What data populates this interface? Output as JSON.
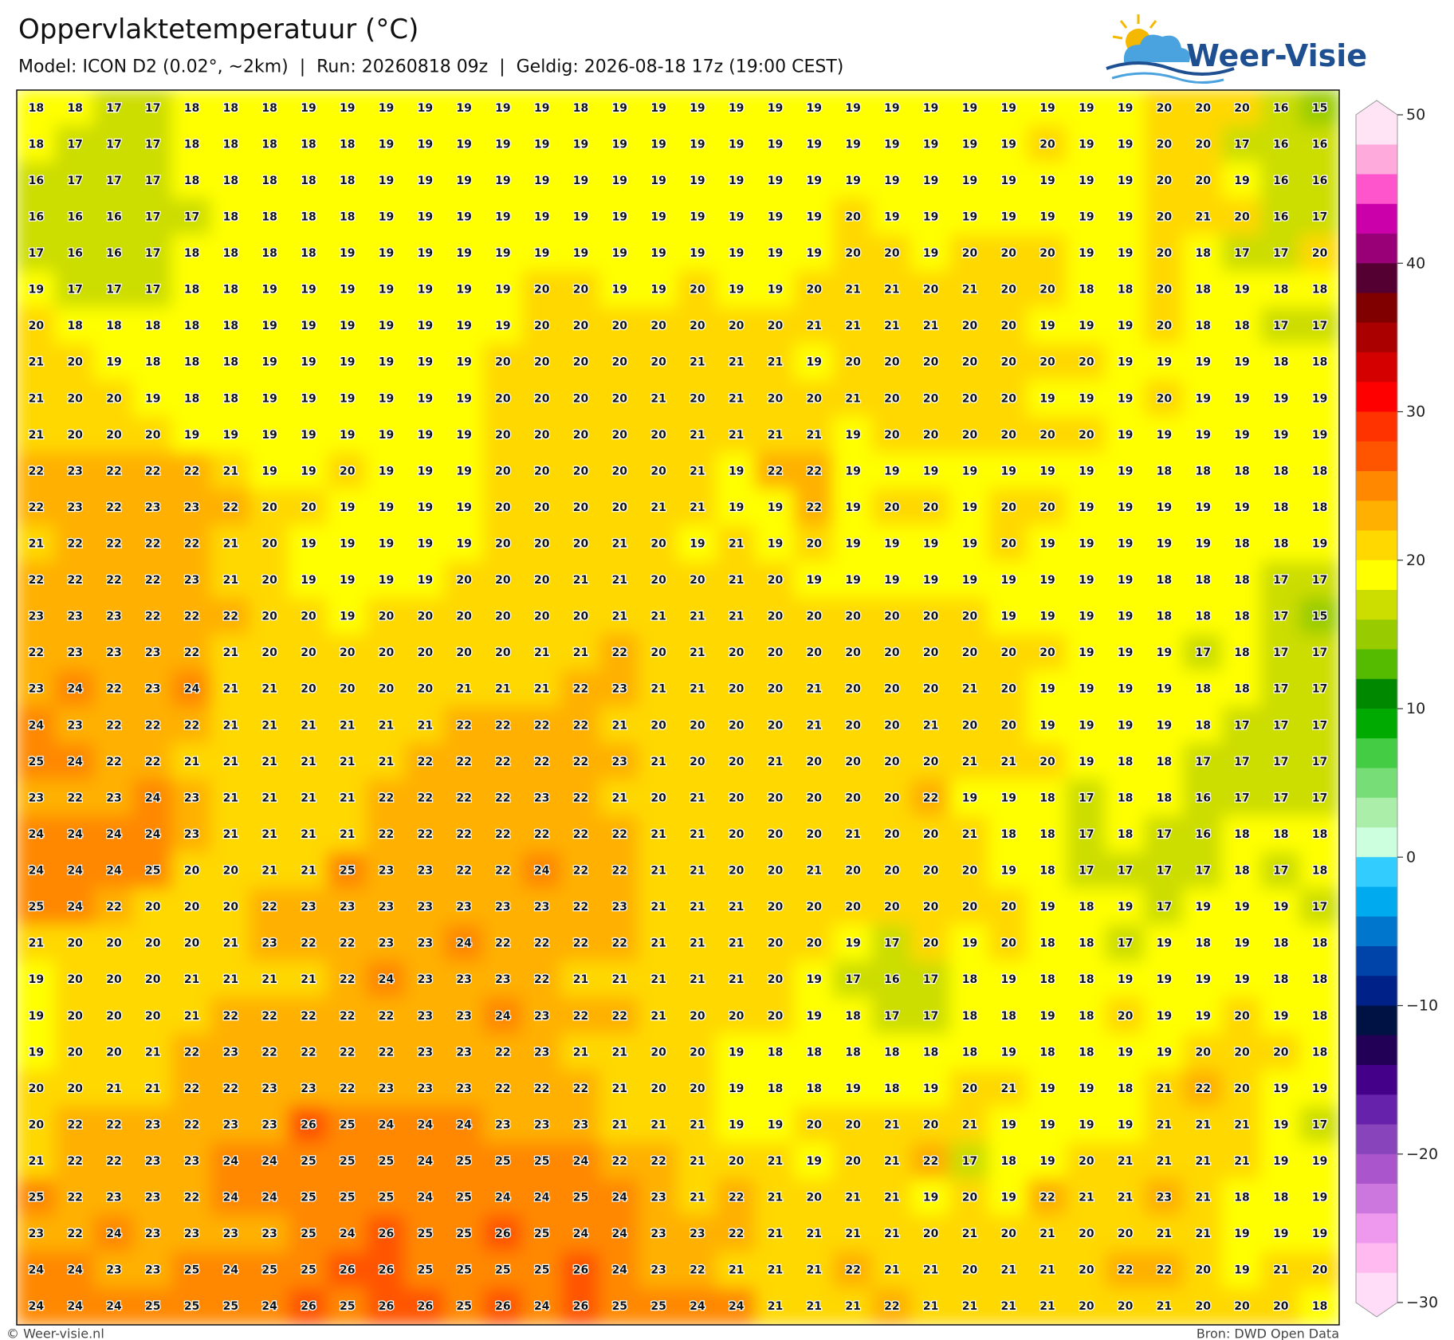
{
  "title": "Oppervlaktetemperatuur (°C)",
  "subtitle": "Model: ICON D2 (0.02°, ~2km)  |  Run: 20260818 09z  |  Geldig: 2026-08-18 17z (19:00 CEST)",
  "logo": "Weer-Visie",
  "footer": {
    "left": "© Weer-visie.nl",
    "right": "Bron: DWD Open Data"
  },
  "chart_data": {
    "type": "heatmap",
    "values": [
      [
        18,
        18,
        17,
        17,
        18,
        18,
        18,
        19,
        19,
        19,
        19,
        19,
        19,
        19,
        18,
        19,
        19,
        19,
        19,
        19,
        19,
        19,
        19,
        19,
        19,
        19,
        19,
        19,
        19,
        20,
        20,
        20,
        16,
        15
      ],
      [
        18,
        17,
        17,
        17,
        18,
        18,
        18,
        18,
        18,
        19,
        19,
        19,
        19,
        19,
        19,
        19,
        19,
        19,
        19,
        19,
        19,
        19,
        19,
        19,
        19,
        19,
        20,
        19,
        19,
        20,
        20,
        17,
        16,
        16
      ],
      [
        16,
        17,
        17,
        17,
        18,
        18,
        18,
        18,
        18,
        19,
        19,
        19,
        19,
        19,
        19,
        19,
        19,
        19,
        19,
        19,
        19,
        19,
        19,
        19,
        19,
        19,
        19,
        19,
        19,
        20,
        20,
        19,
        16,
        16
      ],
      [
        16,
        16,
        16,
        17,
        17,
        18,
        18,
        18,
        18,
        19,
        19,
        19,
        19,
        19,
        19,
        19,
        19,
        19,
        19,
        19,
        19,
        20,
        19,
        19,
        19,
        19,
        19,
        19,
        19,
        20,
        21,
        20,
        16,
        17
      ],
      [
        17,
        16,
        16,
        17,
        18,
        18,
        18,
        18,
        19,
        19,
        19,
        19,
        19,
        19,
        19,
        19,
        19,
        19,
        19,
        19,
        19,
        20,
        20,
        19,
        20,
        20,
        20,
        19,
        19,
        20,
        18,
        17,
        17,
        20
      ],
      [
        19,
        17,
        17,
        17,
        18,
        18,
        19,
        19,
        19,
        19,
        19,
        19,
        19,
        20,
        20,
        19,
        19,
        20,
        19,
        19,
        20,
        21,
        21,
        20,
        21,
        20,
        20,
        18,
        18,
        20,
        18,
        19,
        18,
        18
      ],
      [
        20,
        18,
        18,
        18,
        18,
        18,
        19,
        19,
        19,
        19,
        19,
        19,
        19,
        20,
        20,
        20,
        20,
        20,
        20,
        20,
        21,
        21,
        21,
        21,
        20,
        20,
        19,
        19,
        19,
        20,
        18,
        18,
        17,
        17
      ],
      [
        21,
        20,
        19,
        18,
        18,
        18,
        19,
        19,
        19,
        19,
        19,
        19,
        20,
        20,
        20,
        20,
        20,
        21,
        21,
        21,
        19,
        20,
        20,
        20,
        20,
        20,
        20,
        20,
        19,
        19,
        19,
        19,
        18,
        18
      ],
      [
        21,
        20,
        20,
        19,
        18,
        18,
        19,
        19,
        19,
        19,
        19,
        19,
        20,
        20,
        20,
        20,
        21,
        20,
        21,
        20,
        20,
        21,
        20,
        20,
        20,
        20,
        19,
        19,
        19,
        20,
        19,
        19,
        19,
        19
      ],
      [
        21,
        20,
        20,
        20,
        19,
        19,
        19,
        19,
        19,
        19,
        19,
        19,
        20,
        20,
        20,
        20,
        20,
        21,
        21,
        21,
        21,
        19,
        20,
        20,
        20,
        20,
        20,
        20,
        19,
        19,
        19,
        19,
        19,
        19
      ],
      [
        22,
        23,
        22,
        22,
        22,
        21,
        19,
        19,
        20,
        19,
        19,
        19,
        20,
        20,
        20,
        20,
        20,
        21,
        19,
        22,
        22,
        19,
        19,
        19,
        19,
        19,
        19,
        19,
        19,
        18,
        18,
        18,
        18,
        18
      ],
      [
        22,
        23,
        22,
        23,
        23,
        22,
        20,
        20,
        19,
        19,
        19,
        19,
        20,
        20,
        20,
        20,
        21,
        21,
        19,
        19,
        22,
        19,
        20,
        20,
        19,
        20,
        20,
        19,
        19,
        19,
        19,
        19,
        18,
        18
      ],
      [
        21,
        22,
        22,
        22,
        22,
        21,
        20,
        19,
        19,
        19,
        19,
        19,
        20,
        20,
        20,
        21,
        20,
        19,
        21,
        19,
        20,
        19,
        19,
        19,
        19,
        20,
        19,
        19,
        19,
        19,
        19,
        18,
        18,
        19
      ],
      [
        22,
        22,
        22,
        22,
        23,
        21,
        20,
        19,
        19,
        19,
        19,
        20,
        20,
        20,
        21,
        21,
        20,
        20,
        21,
        20,
        19,
        19,
        19,
        19,
        19,
        19,
        19,
        19,
        19,
        18,
        18,
        18,
        17,
        17
      ],
      [
        23,
        23,
        23,
        22,
        22,
        22,
        20,
        20,
        19,
        20,
        20,
        20,
        20,
        20,
        20,
        21,
        21,
        21,
        21,
        20,
        20,
        20,
        20,
        20,
        20,
        19,
        19,
        19,
        19,
        18,
        18,
        18,
        17,
        15
      ],
      [
        22,
        23,
        23,
        23,
        22,
        21,
        20,
        20,
        20,
        20,
        20,
        20,
        20,
        21,
        21,
        22,
        20,
        21,
        20,
        20,
        20,
        20,
        20,
        20,
        20,
        20,
        20,
        19,
        19,
        19,
        17,
        18,
        17,
        17
      ],
      [
        23,
        24,
        22,
        23,
        24,
        21,
        21,
        20,
        20,
        20,
        20,
        21,
        21,
        21,
        22,
        23,
        21,
        21,
        20,
        20,
        21,
        20,
        20,
        20,
        21,
        20,
        19,
        19,
        19,
        19,
        18,
        18,
        17,
        17
      ],
      [
        24,
        23,
        22,
        22,
        22,
        21,
        21,
        21,
        21,
        21,
        21,
        22,
        22,
        22,
        22,
        21,
        20,
        20,
        20,
        20,
        21,
        20,
        20,
        21,
        20,
        20,
        19,
        19,
        19,
        19,
        18,
        17,
        17,
        17
      ],
      [
        25,
        24,
        22,
        22,
        21,
        21,
        21,
        21,
        21,
        21,
        22,
        22,
        22,
        22,
        22,
        23,
        21,
        20,
        20,
        21,
        20,
        20,
        20,
        20,
        21,
        21,
        20,
        19,
        18,
        18,
        17,
        17,
        17,
        17
      ],
      [
        23,
        22,
        23,
        24,
        23,
        21,
        21,
        21,
        21,
        22,
        22,
        22,
        22,
        23,
        22,
        21,
        20,
        21,
        20,
        20,
        20,
        20,
        20,
        22,
        19,
        19,
        18,
        17,
        18,
        18,
        16,
        17,
        17,
        17
      ],
      [
        24,
        24,
        24,
        24,
        23,
        21,
        21,
        21,
        21,
        22,
        22,
        22,
        22,
        22,
        22,
        22,
        21,
        21,
        20,
        20,
        20,
        21,
        20,
        20,
        21,
        18,
        18,
        17,
        18,
        17,
        16,
        18,
        18,
        18
      ],
      [
        24,
        24,
        24,
        25,
        20,
        20,
        21,
        21,
        25,
        23,
        23,
        22,
        22,
        24,
        22,
        22,
        21,
        21,
        20,
        20,
        21,
        20,
        20,
        20,
        20,
        19,
        18,
        17,
        17,
        17,
        17,
        18,
        17,
        18
      ],
      [
        25,
        24,
        22,
        20,
        20,
        20,
        22,
        23,
        23,
        23,
        23,
        23,
        23,
        23,
        22,
        23,
        21,
        21,
        21,
        20,
        20,
        20,
        20,
        20,
        20,
        20,
        19,
        18,
        19,
        17,
        19,
        19,
        19,
        17
      ],
      [
        21,
        20,
        20,
        20,
        20,
        21,
        23,
        22,
        22,
        23,
        23,
        24,
        22,
        22,
        22,
        22,
        21,
        21,
        21,
        20,
        20,
        19,
        17,
        20,
        19,
        20,
        18,
        18,
        17,
        19,
        18,
        19,
        18,
        18
      ],
      [
        19,
        20,
        20,
        20,
        21,
        21,
        21,
        21,
        22,
        24,
        23,
        23,
        23,
        22,
        21,
        21,
        21,
        21,
        21,
        20,
        19,
        17,
        16,
        17,
        18,
        19,
        18,
        18,
        19,
        19,
        19,
        19,
        18,
        18
      ],
      [
        19,
        20,
        20,
        20,
        21,
        22,
        22,
        22,
        22,
        22,
        23,
        23,
        24,
        23,
        22,
        22,
        21,
        20,
        20,
        20,
        19,
        18,
        17,
        17,
        18,
        18,
        19,
        18,
        20,
        19,
        19,
        20,
        19,
        18
      ],
      [
        19,
        20,
        20,
        21,
        22,
        23,
        22,
        22,
        22,
        22,
        23,
        23,
        22,
        23,
        21,
        21,
        20,
        20,
        19,
        18,
        18,
        18,
        18,
        18,
        18,
        19,
        18,
        18,
        19,
        19,
        20,
        20,
        20,
        18
      ],
      [
        20,
        20,
        21,
        21,
        22,
        22,
        23,
        23,
        22,
        23,
        23,
        23,
        22,
        22,
        22,
        21,
        20,
        20,
        19,
        18,
        18,
        19,
        18,
        19,
        20,
        21,
        19,
        19,
        18,
        21,
        22,
        20,
        19,
        19
      ],
      [
        20,
        22,
        22,
        23,
        22,
        23,
        23,
        26,
        25,
        24,
        24,
        24,
        23,
        23,
        23,
        21,
        21,
        21,
        19,
        19,
        20,
        20,
        21,
        20,
        21,
        19,
        19,
        19,
        19,
        21,
        21,
        21,
        19,
        17
      ],
      [
        21,
        22,
        22,
        23,
        23,
        24,
        24,
        25,
        25,
        25,
        24,
        25,
        25,
        25,
        24,
        22,
        22,
        21,
        20,
        21,
        19,
        20,
        21,
        22,
        17,
        18,
        19,
        20,
        21,
        21,
        21,
        21,
        19,
        19
      ],
      [
        25,
        22,
        23,
        23,
        22,
        24,
        24,
        25,
        25,
        25,
        24,
        25,
        24,
        24,
        25,
        24,
        23,
        21,
        22,
        21,
        20,
        21,
        21,
        19,
        20,
        19,
        22,
        21,
        21,
        23,
        21,
        18,
        18,
        19
      ],
      [
        23,
        22,
        24,
        23,
        23,
        23,
        23,
        25,
        24,
        26,
        25,
        25,
        26,
        25,
        24,
        24,
        23,
        23,
        22,
        21,
        21,
        21,
        21,
        20,
        21,
        20,
        21,
        20,
        20,
        21,
        21,
        19,
        19,
        19
      ],
      [
        24,
        24,
        23,
        23,
        25,
        24,
        25,
        25,
        26,
        26,
        25,
        25,
        25,
        25,
        26,
        24,
        23,
        22,
        21,
        21,
        21,
        22,
        21,
        21,
        20,
        21,
        21,
        20,
        22,
        22,
        20,
        19,
        21,
        20
      ],
      [
        24,
        24,
        24,
        25,
        25,
        25,
        24,
        26,
        25,
        26,
        26,
        25,
        26,
        24,
        26,
        25,
        25,
        24,
        24,
        21,
        21,
        21,
        22,
        21,
        21,
        21,
        21,
        20,
        20,
        21,
        20,
        20,
        20,
        18
      ]
    ],
    "colorbar": {
      "lim": [
        -30,
        50
      ],
      "ticks": [
        50,
        40,
        30,
        20,
        10,
        0,
        {
          "value": -10,
          "label": "−10"
        },
        {
          "value": -20,
          "label": "−20"
        },
        {
          "value": -30,
          "label": "−30"
        }
      ],
      "colors": [
        "#ffe4f6",
        "#ffaadd",
        "#ff55cc",
        "#cc00aa",
        "#990077",
        "#550033",
        "#800000",
        "#aa0000",
        "#d40000",
        "#ff0000",
        "#ff3300",
        "#ff5500",
        "#ff8800",
        "#ffb000",
        "#ffd800",
        "#ffff00",
        "#ccdd00",
        "#99cc00",
        "#55bb00",
        "#008800",
        "#00aa00",
        "#44cc44",
        "#77dd77",
        "#aaeeaa",
        "#ccffdd",
        "#33ccff",
        "#00aaee",
        "#0077cc",
        "#0044aa",
        "#002288",
        "#001144",
        "#220055",
        "#440088",
        "#6622aa",
        "#8844bb",
        "#aa55cc",
        "#cc77dd",
        "#ee99ee",
        "#ffbbf0",
        "#ffddf8"
      ]
    }
  }
}
